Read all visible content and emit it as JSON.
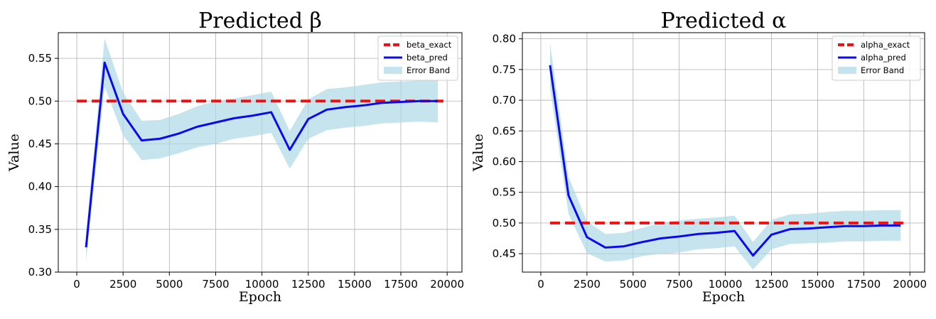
{
  "chart_data": [
    {
      "type": "line",
      "title": "Predicted β",
      "xlabel": "Epoch",
      "ylabel": "Value",
      "xlim": [
        -1000,
        20800
      ],
      "ylim": [
        0.3,
        0.58
      ],
      "xticks": [
        0,
        2500,
        5000,
        7500,
        10000,
        12500,
        15000,
        17500,
        20000
      ],
      "xtick_labels": [
        "0",
        "2500",
        "5000",
        "7500",
        "10000",
        "12500",
        "15000",
        "17500",
        "20000"
      ],
      "yticks": [
        0.3,
        0.35,
        0.4,
        0.45,
        0.5,
        0.55
      ],
      "ytick_labels": [
        "0.30",
        "0.35",
        "0.40",
        "0.45",
        "0.50",
        "0.55"
      ],
      "grid": true,
      "legend_position": "top-right",
      "exact_value": 0.5,
      "exact_range": [
        0,
        19800
      ],
      "x": [
        500,
        1500,
        2500,
        3500,
        4500,
        5500,
        6500,
        7500,
        8500,
        9500,
        10500,
        11500,
        12500,
        13500,
        14500,
        15500,
        16500,
        17500,
        18500,
        19500
      ],
      "pred": [
        0.329,
        0.545,
        0.485,
        0.454,
        0.456,
        0.462,
        0.47,
        0.475,
        0.48,
        0.483,
        0.487,
        0.443,
        0.479,
        0.49,
        0.493,
        0.495,
        0.498,
        0.499,
        0.5,
        0.5
      ],
      "upper": [
        0.345,
        0.573,
        0.51,
        0.477,
        0.478,
        0.485,
        0.494,
        0.5,
        0.503,
        0.507,
        0.511,
        0.465,
        0.502,
        0.514,
        0.516,
        0.519,
        0.522,
        0.523,
        0.524,
        0.524
      ],
      "lower": [
        0.313,
        0.517,
        0.46,
        0.431,
        0.433,
        0.439,
        0.446,
        0.45,
        0.456,
        0.459,
        0.463,
        0.421,
        0.456,
        0.466,
        0.469,
        0.471,
        0.474,
        0.475,
        0.476,
        0.475
      ],
      "legend": [
        "beta_exact",
        "beta_pred",
        "Error Band"
      ],
      "colors": {
        "exact": "#ee1111",
        "pred": "#0a0aee",
        "band": "#add8e6"
      }
    },
    {
      "type": "line",
      "title": "Predicted α",
      "xlabel": "Epoch",
      "ylabel": "Value",
      "xlim": [
        -1000,
        20800
      ],
      "ylim": [
        0.42,
        0.81
      ],
      "xticks": [
        0,
        2500,
        5000,
        7500,
        10000,
        12500,
        15000,
        17500,
        20000
      ],
      "xtick_labels": [
        "0",
        "2500",
        "5000",
        "7500",
        "10000",
        "12500",
        "15000",
        "17500",
        "20000"
      ],
      "yticks": [
        0.45,
        0.5,
        0.55,
        0.6,
        0.65,
        0.7,
        0.75,
        0.8
      ],
      "ytick_labels": [
        "0.45",
        "0.50",
        "0.55",
        "0.60",
        "0.65",
        "0.70",
        "0.75",
        "0.80"
      ],
      "grid": true,
      "legend_position": "top-right",
      "exact_value": 0.5,
      "exact_range": [
        500,
        19800
      ],
      "x": [
        500,
        1500,
        2500,
        3500,
        4500,
        5500,
        6500,
        7500,
        8500,
        9500,
        10500,
        11500,
        12500,
        13500,
        14500,
        15500,
        16500,
        17500,
        18500,
        19500
      ],
      "pred": [
        0.757,
        0.545,
        0.477,
        0.46,
        0.462,
        0.469,
        0.475,
        0.478,
        0.482,
        0.484,
        0.487,
        0.447,
        0.481,
        0.49,
        0.491,
        0.493,
        0.495,
        0.495,
        0.496,
        0.496
      ],
      "upper": [
        0.793,
        0.575,
        0.503,
        0.482,
        0.484,
        0.492,
        0.5,
        0.504,
        0.507,
        0.509,
        0.512,
        0.469,
        0.505,
        0.514,
        0.515,
        0.518,
        0.52,
        0.52,
        0.521,
        0.521
      ],
      "lower": [
        0.72,
        0.515,
        0.451,
        0.437,
        0.439,
        0.446,
        0.45,
        0.452,
        0.457,
        0.459,
        0.462,
        0.424,
        0.457,
        0.466,
        0.467,
        0.468,
        0.47,
        0.47,
        0.471,
        0.471
      ],
      "legend": [
        "alpha_exact",
        "alpha_pred",
        "Error Band"
      ],
      "colors": {
        "exact": "#ee1111",
        "pred": "#0a0aee",
        "band": "#add8e6"
      }
    }
  ]
}
